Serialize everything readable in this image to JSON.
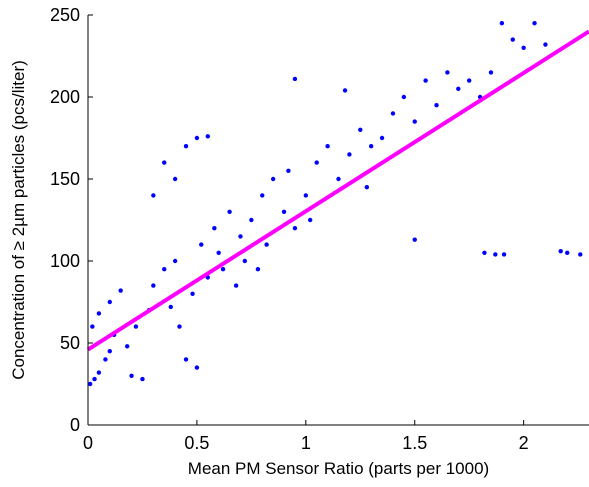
{
  "chart_data": {
    "type": "scatter",
    "title": "",
    "xlabel": "Mean PM Sensor Ratio (parts per 1000)",
    "ylabel": "Concentration of ≥ 2µm particles (pcs/liter)",
    "xlim": [
      0,
      2.3
    ],
    "ylim": [
      0,
      250
    ],
    "xticks": [
      0,
      0.5,
      1,
      1.5,
      2
    ],
    "xtick_labels": [
      "0",
      "0.5",
      "1",
      "1.5",
      "2"
    ],
    "yticks": [
      0,
      50,
      100,
      150,
      200,
      250
    ],
    "ytick_labels": [
      "0",
      "50",
      "100",
      "150",
      "200",
      "250"
    ],
    "grid": false,
    "legend": "none",
    "point_color": "#0000ff",
    "fit_color": "#ff00ff",
    "series": [
      {
        "kind": "points",
        "points": [
          [
            0.01,
            25
          ],
          [
            0.03,
            28
          ],
          [
            0.05,
            32
          ],
          [
            0.08,
            40
          ],
          [
            0.1,
            45
          ],
          [
            0.02,
            60
          ],
          [
            0.05,
            68
          ],
          [
            0.1,
            75
          ],
          [
            0.15,
            82
          ],
          [
            0.12,
            55
          ],
          [
            0.18,
            48
          ],
          [
            0.2,
            30
          ],
          [
            0.25,
            28
          ],
          [
            0.22,
            60
          ],
          [
            0.28,
            70
          ],
          [
            0.3,
            85
          ],
          [
            0.35,
            95
          ],
          [
            0.4,
            100
          ],
          [
            0.38,
            72
          ],
          [
            0.42,
            60
          ],
          [
            0.45,
            40
          ],
          [
            0.5,
            35
          ],
          [
            0.48,
            80
          ],
          [
            0.55,
            90
          ],
          [
            0.52,
            110
          ],
          [
            0.6,
            105
          ],
          [
            0.58,
            120
          ],
          [
            0.62,
            95
          ],
          [
            0.65,
            130
          ],
          [
            0.7,
            115
          ],
          [
            0.72,
            100
          ],
          [
            0.68,
            85
          ],
          [
            0.75,
            125
          ],
          [
            0.8,
            140
          ],
          [
            0.82,
            110
          ],
          [
            0.78,
            95
          ],
          [
            0.85,
            150
          ],
          [
            0.9,
            130
          ],
          [
            0.95,
            120
          ],
          [
            0.92,
            155
          ],
          [
            1.0,
            140
          ],
          [
            1.05,
            160
          ],
          [
            1.02,
            125
          ],
          [
            1.1,
            170
          ],
          [
            1.15,
            150
          ],
          [
            1.2,
            165
          ],
          [
            1.25,
            180
          ],
          [
            1.3,
            170
          ],
          [
            1.28,
            145
          ],
          [
            1.35,
            175
          ],
          [
            1.4,
            190
          ],
          [
            1.45,
            200
          ],
          [
            1.5,
            185
          ],
          [
            1.55,
            210
          ],
          [
            1.6,
            195
          ],
          [
            1.65,
            215
          ],
          [
            1.7,
            205
          ],
          [
            1.75,
            210
          ],
          [
            1.8,
            200
          ],
          [
            1.85,
            215
          ],
          [
            1.9,
            245
          ],
          [
            1.95,
            235
          ],
          [
            2.0,
            230
          ],
          [
            2.05,
            245
          ],
          [
            2.1,
            232
          ],
          [
            1.82,
            105
          ],
          [
            1.87,
            104
          ],
          [
            1.91,
            104
          ],
          [
            2.17,
            106
          ],
          [
            2.2,
            105
          ],
          [
            2.26,
            104
          ],
          [
            1.5,
            113
          ],
          [
            0.95,
            211
          ],
          [
            1.18,
            204
          ],
          [
            0.5,
            175
          ],
          [
            0.55,
            176
          ],
          [
            0.45,
            170
          ],
          [
            0.4,
            150
          ],
          [
            0.35,
            160
          ],
          [
            0.3,
            140
          ]
        ]
      },
      {
        "kind": "fit_line",
        "points": [
          [
            0,
            46
          ],
          [
            2.3,
            240
          ]
        ]
      }
    ]
  }
}
